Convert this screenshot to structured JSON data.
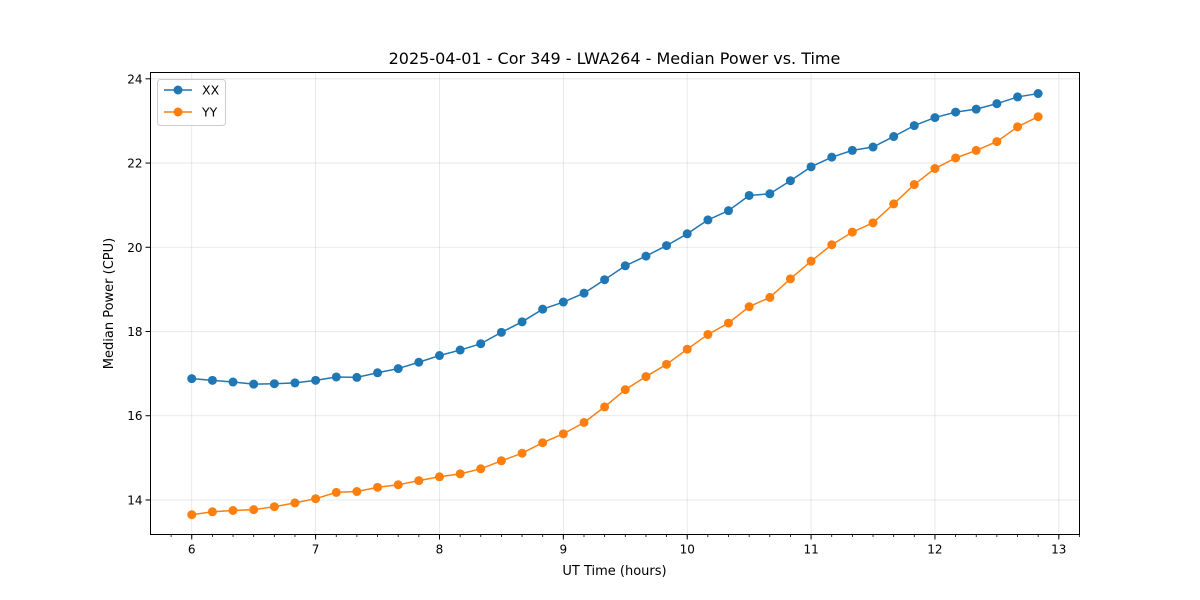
{
  "chart_data": {
    "type": "line",
    "title": "2025-04-01 - Cor 349 - LWA264 - Median Power vs. Time",
    "xlabel": "UT Time (hours)",
    "ylabel": "Median Power (CPU)",
    "xlim": [
      5.667,
      13.167
    ],
    "ylim": [
      13.18,
      24.15
    ],
    "xticks": [
      6,
      7,
      8,
      9,
      10,
      11,
      12,
      13
    ],
    "yticks": [
      14,
      16,
      18,
      20,
      22,
      24
    ],
    "grid": true,
    "legend_position": "top-left",
    "x": [
      6.0,
      6.167,
      6.333,
      6.5,
      6.667,
      6.833,
      7.0,
      7.167,
      7.333,
      7.5,
      7.667,
      7.833,
      8.0,
      8.167,
      8.333,
      8.5,
      8.667,
      8.833,
      9.0,
      9.167,
      9.333,
      9.5,
      9.667,
      9.833,
      10.0,
      10.167,
      10.333,
      10.5,
      10.667,
      10.833,
      11.0,
      11.167,
      11.333,
      11.5,
      11.667,
      11.833,
      12.0,
      12.167,
      12.333,
      12.5,
      12.667,
      12.833
    ],
    "series": [
      {
        "name": "XX",
        "color": "#1f77b4",
        "values": [
          16.88,
          16.84,
          16.8,
          16.75,
          16.76,
          16.78,
          16.84,
          16.92,
          16.91,
          17.02,
          17.12,
          17.27,
          17.43,
          17.56,
          17.71,
          17.98,
          18.23,
          18.53,
          18.7,
          18.91,
          19.23,
          19.56,
          19.79,
          20.04,
          20.32,
          20.65,
          20.87,
          21.23,
          21.27,
          21.58,
          21.91,
          22.14,
          22.3,
          22.38,
          22.63,
          22.89,
          23.08,
          23.21,
          23.28,
          23.41,
          23.57,
          23.65
        ]
      },
      {
        "name": "YY",
        "color": "#ff7f0e",
        "values": [
          13.65,
          13.72,
          13.75,
          13.77,
          13.84,
          13.93,
          14.03,
          14.18,
          14.2,
          14.3,
          14.36,
          14.46,
          14.55,
          14.62,
          14.74,
          14.93,
          15.11,
          15.36,
          15.57,
          15.84,
          16.21,
          16.62,
          16.93,
          17.22,
          17.58,
          17.93,
          18.2,
          18.59,
          18.81,
          19.25,
          19.67,
          20.06,
          20.36,
          20.58,
          21.03,
          21.49,
          21.87,
          22.12,
          22.3,
          22.51,
          22.86,
          23.1
        ]
      }
    ]
  }
}
